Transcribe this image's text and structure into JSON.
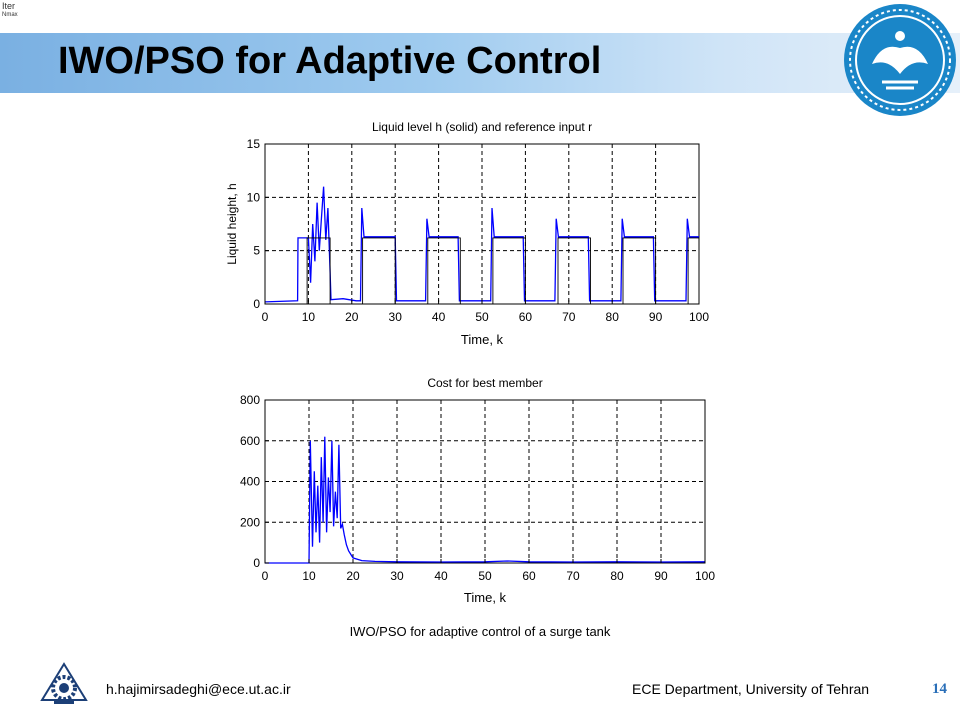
{
  "slide": {
    "title": "IWO/PSO for Adaptive Control",
    "corner_text": "Iter",
    "corner_subtext": "Nmax",
    "caption": "IWO/PSO  for adaptive control of a surge tank",
    "footer_left": "h.hajimirsadeghi@ece.ut.ac.ir",
    "footer_right": "ECE Department, University of Tehran",
    "page_number": "14",
    "colors": {
      "band": "#8fbfe8",
      "accent": "#2a6fb8",
      "series": "#0000ff"
    }
  },
  "chart_data": [
    {
      "type": "line",
      "title": "Liquid level h (solid) and reference input r",
      "xlabel": "Time, k",
      "ylabel": "Liquid height, h",
      "xlim": [
        0,
        100
      ],
      "ylim": [
        0,
        15
      ],
      "xticks": [
        0,
        10,
        20,
        30,
        40,
        50,
        60,
        70,
        80,
        90,
        100
      ],
      "yticks": [
        0,
        5,
        10,
        15
      ],
      "grid": true,
      "series": [
        {
          "values": [
            [
              0,
              0.2
            ],
            [
              7.5,
              0.3
            ],
            [
              7.6,
              6.2
            ],
            [
              10,
              6.2
            ],
            [
              10.5,
              2
            ],
            [
              11,
              7.5
            ],
            [
              11.5,
              4
            ],
            [
              12,
              9.5
            ],
            [
              12.5,
              5
            ],
            [
              13,
              8
            ],
            [
              13.5,
              11
            ],
            [
              14,
              6
            ],
            [
              14.5,
              9
            ],
            [
              15,
              3
            ],
            [
              15.2,
              0.4
            ],
            [
              18,
              0.5
            ],
            [
              21,
              0.3
            ],
            [
              22,
              0.3
            ],
            [
              22.3,
              9
            ],
            [
              22.8,
              6.3
            ],
            [
              30,
              6.3
            ],
            [
              30.3,
              0.3
            ],
            [
              37,
              0.3
            ],
            [
              37.3,
              8
            ],
            [
              37.8,
              6.3
            ],
            [
              44.5,
              6.3
            ],
            [
              44.8,
              0.3
            ],
            [
              52,
              0.3
            ],
            [
              52.3,
              9
            ],
            [
              52.8,
              6.3
            ],
            [
              59.5,
              6.3
            ],
            [
              59.8,
              0.3
            ],
            [
              66.8,
              0.3
            ],
            [
              67.1,
              8
            ],
            [
              67.6,
              6.3
            ],
            [
              74.5,
              6.3
            ],
            [
              74.8,
              0.3
            ],
            [
              82,
              0.3
            ],
            [
              82.3,
              8
            ],
            [
              82.8,
              6.3
            ],
            [
              89.5,
              6.3
            ],
            [
              89.8,
              0.3
            ],
            [
              97,
              0.3
            ],
            [
              97.3,
              8
            ],
            [
              97.8,
              6.3
            ],
            [
              100,
              6.3
            ]
          ]
        },
        {
          "values": [
            [
              0,
              0
            ],
            [
              9.7,
              0
            ],
            [
              9.7,
              6.2
            ],
            [
              15,
              6.2
            ],
            [
              15,
              0
            ],
            [
              22.5,
              0
            ],
            [
              22.5,
              6.2
            ],
            [
              30,
              6.2
            ],
            [
              30,
              0
            ],
            [
              37.5,
              0
            ],
            [
              37.5,
              6.2
            ],
            [
              45,
              6.2
            ],
            [
              45,
              0
            ],
            [
              52.5,
              0
            ],
            [
              52.5,
              6.2
            ],
            [
              60,
              6.2
            ],
            [
              60,
              0
            ],
            [
              67.5,
              0
            ],
            [
              67.5,
              6.2
            ],
            [
              75,
              6.2
            ],
            [
              75,
              0
            ],
            [
              82.5,
              0
            ],
            [
              82.5,
              6.2
            ],
            [
              90,
              6.2
            ],
            [
              90,
              0
            ],
            [
              97.5,
              0
            ],
            [
              97.5,
              6.2
            ],
            [
              100,
              6.2
            ]
          ]
        }
      ]
    },
    {
      "type": "line",
      "title": "Cost for best member",
      "xlabel": "Time, k",
      "ylabel": "",
      "xlim": [
        0,
        100
      ],
      "ylim": [
        0,
        800
      ],
      "xticks": [
        0,
        10,
        20,
        30,
        40,
        50,
        60,
        70,
        80,
        90,
        100
      ],
      "yticks": [
        0,
        200,
        400,
        600,
        800
      ],
      "grid": true,
      "series": [
        {
          "values": [
            [
              0,
              0
            ],
            [
              10,
              0
            ],
            [
              10.3,
              600
            ],
            [
              10.8,
              80
            ],
            [
              11.2,
              450
            ],
            [
              11.6,
              150
            ],
            [
              12,
              380
            ],
            [
              12.4,
              100
            ],
            [
              12.8,
              520
            ],
            [
              13.2,
              200
            ],
            [
              13.6,
              620
            ],
            [
              14,
              150
            ],
            [
              14.4,
              420
            ],
            [
              14.8,
              250
            ],
            [
              15.2,
              600
            ],
            [
              15.6,
              180
            ],
            [
              16,
              350
            ],
            [
              16.4,
              220
            ],
            [
              16.8,
              580
            ],
            [
              17.2,
              170
            ],
            [
              17.6,
              190
            ],
            [
              18,
              140
            ],
            [
              18.5,
              90
            ],
            [
              19,
              60
            ],
            [
              20,
              25
            ],
            [
              22,
              12
            ],
            [
              25,
              8
            ],
            [
              30,
              6
            ],
            [
              40,
              5
            ],
            [
              50,
              6
            ],
            [
              55,
              10
            ],
            [
              60,
              6
            ],
            [
              70,
              5
            ],
            [
              80,
              6
            ],
            [
              90,
              5
            ],
            [
              100,
              6
            ]
          ]
        }
      ]
    }
  ]
}
